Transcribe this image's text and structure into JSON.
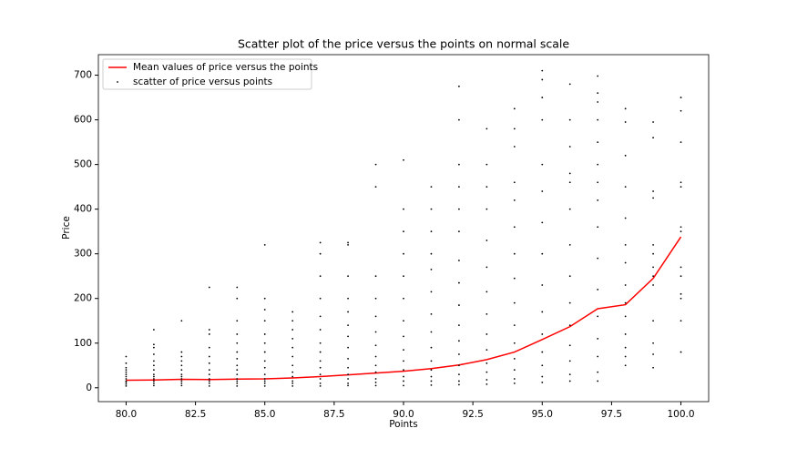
{
  "chart_data": {
    "type": "scatter",
    "title": "Scatter plot of the price versus the points on normal scale",
    "xlabel": "Points",
    "ylabel": "Price",
    "xlim": [
      79,
      101
    ],
    "xticks": [
      {
        "value": 80,
        "label": "80.0"
      },
      {
        "value": 82.5,
        "label": "82.5"
      },
      {
        "value": 85,
        "label": "85.0"
      },
      {
        "value": 87.5,
        "label": "87.5"
      },
      {
        "value": 90,
        "label": "90.0"
      },
      {
        "value": 92.5,
        "label": "92.5"
      },
      {
        "value": 95,
        "label": "95.0"
      },
      {
        "value": 97.5,
        "label": "97.5"
      },
      {
        "value": 100,
        "label": "100.0"
      }
    ],
    "ylim": [
      -31,
      746
    ],
    "yticks": [
      0,
      100,
      200,
      300,
      400,
      500,
      600,
      700
    ],
    "grid": false,
    "legend": "upper left",
    "series": [
      {
        "name": "Mean values of price versus the points",
        "type": "line",
        "color": "#ff0000",
        "x": [
          80,
          81,
          82,
          83,
          84,
          85,
          86,
          87,
          88,
          89,
          90,
          91,
          92,
          93,
          94,
          95,
          96,
          97,
          98,
          99,
          100
        ],
        "values": [
          17,
          17.5,
          19,
          18.5,
          19.5,
          20,
          22,
          25,
          29,
          33,
          37,
          43,
          51,
          63,
          80,
          108,
          137,
          177,
          186,
          245,
          338
        ]
      },
      {
        "name": "scatter of price versus points",
        "type": "scatter",
        "color": "#000000",
        "x": [
          80,
          80,
          80,
          80,
          80,
          80,
          80,
          80,
          80,
          80,
          80,
          80,
          81,
          81,
          81,
          81,
          81,
          81,
          81,
          81,
          81,
          81,
          81,
          81,
          81,
          82,
          82,
          82,
          82,
          82,
          82,
          82,
          82,
          82,
          82,
          82,
          82,
          83,
          83,
          83,
          83,
          83,
          83,
          83,
          83,
          83,
          83,
          83,
          83,
          84,
          84,
          84,
          84,
          84,
          84,
          84,
          84,
          84,
          84,
          84,
          84,
          84,
          84,
          85,
          85,
          85,
          85,
          85,
          85,
          85,
          85,
          85,
          85,
          85,
          85,
          85,
          85,
          86,
          86,
          86,
          86,
          86,
          86,
          86,
          86,
          86,
          86,
          86,
          86,
          87,
          87,
          87,
          87,
          87,
          87,
          87,
          87,
          87,
          87,
          87,
          87,
          87,
          87,
          88,
          88,
          88,
          88,
          88,
          88,
          88,
          88,
          88,
          88,
          88,
          88,
          88,
          88,
          89,
          89,
          89,
          89,
          89,
          89,
          89,
          89,
          89,
          89,
          89,
          89,
          89,
          90,
          90,
          90,
          90,
          90,
          90,
          90,
          90,
          90,
          90,
          90,
          90,
          90,
          90,
          91,
          91,
          91,
          91,
          91,
          91,
          91,
          91,
          91,
          91,
          91,
          91,
          91,
          91,
          92,
          92,
          92,
          92,
          92,
          92,
          92,
          92,
          92,
          92,
          92,
          92,
          92,
          92,
          92,
          92,
          93,
          93,
          93,
          93,
          93,
          93,
          93,
          93,
          93,
          93,
          93,
          93,
          93,
          93,
          94,
          94,
          94,
          94,
          94,
          94,
          94,
          94,
          94,
          94,
          94,
          94,
          94,
          94,
          94,
          95,
          95,
          95,
          95,
          95,
          95,
          95,
          95,
          95,
          95,
          95,
          95,
          95,
          95,
          95,
          96,
          96,
          96,
          96,
          96,
          96,
          96,
          96,
          96,
          96,
          96,
          96,
          96,
          96,
          97,
          97,
          97,
          97,
          97,
          97,
          97,
          97,
          97,
          97,
          97,
          97,
          97,
          97,
          97,
          97,
          98,
          98,
          98,
          98,
          98,
          98,
          98,
          98,
          98,
          98,
          98,
          98,
          98,
          98,
          99,
          99,
          99,
          99,
          99,
          99,
          99,
          99,
          99,
          99,
          99,
          99,
          99,
          100,
          100,
          100,
          100,
          100,
          100,
          100,
          100,
          100,
          100,
          100,
          100,
          100
        ],
        "values": [
          4,
          8,
          12,
          15,
          20,
          25,
          30,
          35,
          40,
          45,
          55,
          70,
          5,
          10,
          15,
          20,
          25,
          30,
          40,
          50,
          60,
          75,
          90,
          97,
          130,
          5,
          10,
          15,
          20,
          25,
          30,
          40,
          50,
          60,
          70,
          80,
          150,
          4,
          10,
          15,
          20,
          30,
          40,
          55,
          70,
          90,
          120,
          130,
          225,
          4,
          10,
          15,
          20,
          30,
          40,
          50,
          65,
          80,
          100,
          120,
          150,
          200,
          225,
          4,
          10,
          15,
          20,
          30,
          45,
          60,
          80,
          100,
          120,
          150,
          175,
          200,
          320,
          4,
          10,
          15,
          25,
          35,
          50,
          70,
          90,
          110,
          130,
          150,
          170,
          4,
          10,
          20,
          30,
          45,
          60,
          80,
          100,
          130,
          160,
          200,
          250,
          300,
          325,
          5,
          10,
          20,
          30,
          45,
          65,
          90,
          115,
          140,
          170,
          200,
          250,
          320,
          325,
          5,
          12,
          20,
          35,
          50,
          70,
          95,
          125,
          160,
          200,
          250,
          450,
          500,
          5,
          15,
          25,
          40,
          60,
          85,
          115,
          150,
          200,
          250,
          300,
          350,
          400,
          510,
          6,
          15,
          25,
          40,
          60,
          90,
          125,
          165,
          215,
          265,
          300,
          350,
          400,
          450,
          7,
          15,
          30,
          50,
          75,
          105,
          140,
          185,
          235,
          285,
          350,
          400,
          450,
          500,
          600,
          675,
          8,
          18,
          35,
          55,
          85,
          120,
          165,
          215,
          270,
          330,
          400,
          450,
          500,
          580,
          10,
          20,
          40,
          65,
          100,
          140,
          190,
          245,
          300,
          360,
          420,
          460,
          540,
          580,
          625,
          12,
          25,
          50,
          80,
          120,
          170,
          230,
          300,
          370,
          440,
          500,
          600,
          650,
          690,
          710,
          15,
          30,
          60,
          95,
          140,
          190,
          250,
          320,
          400,
          460,
          480,
          540,
          600,
          680,
          15,
          35,
          70,
          110,
          160,
          220,
          290,
          360,
          420,
          460,
          500,
          550,
          600,
          640,
          660,
          698,
          50,
          70,
          90,
          120,
          160,
          190,
          230,
          280,
          320,
          380,
          450,
          520,
          595,
          625,
          45,
          75,
          100,
          150,
          230,
          250,
          270,
          300,
          320,
          425,
          440,
          560,
          595,
          80,
          150,
          200,
          210,
          250,
          270,
          350,
          360,
          450,
          460,
          550,
          620,
          650
        ]
      }
    ]
  }
}
